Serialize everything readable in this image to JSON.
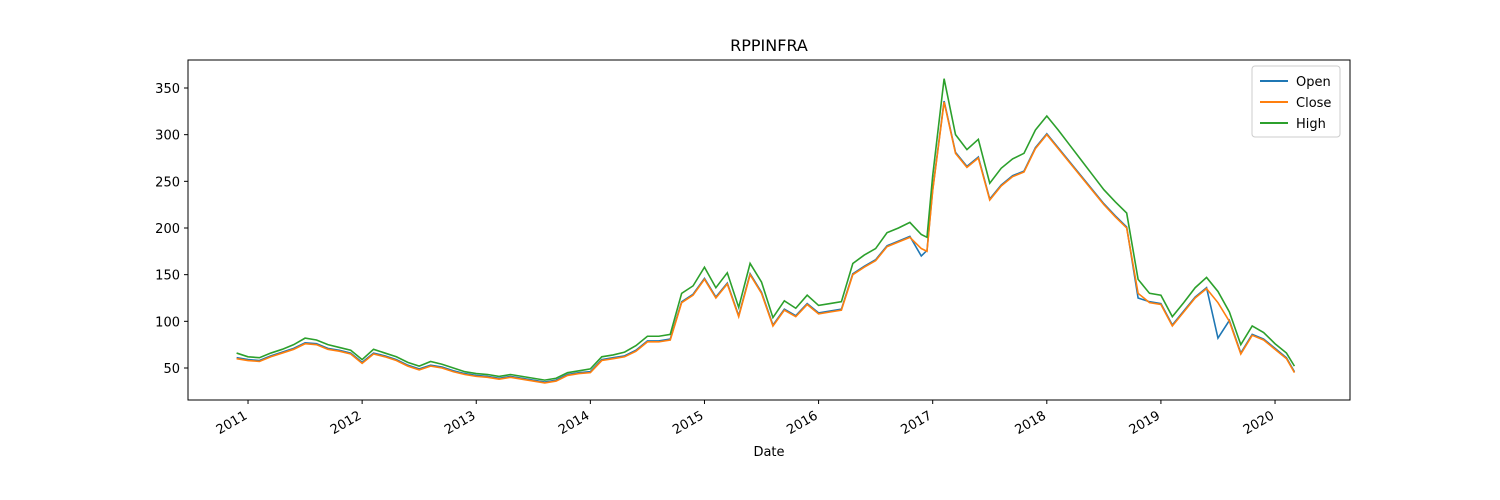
{
  "chart_data": {
    "type": "line",
    "title": "RPPINFRA",
    "x_label": "Date",
    "x": [
      2010.9,
      2011,
      2011.1,
      2011.2,
      2011.3,
      2011.4,
      2011.5,
      2011.6,
      2011.7,
      2011.8,
      2011.9,
      2012,
      2012.1,
      2012.2,
      2012.3,
      2012.4,
      2012.5,
      2012.6,
      2012.7,
      2012.8,
      2012.9,
      2013,
      2013.1,
      2013.2,
      2013.3,
      2013.4,
      2013.5,
      2013.6,
      2013.7,
      2013.8,
      2013.9,
      2014,
      2014.1,
      2014.2,
      2014.3,
      2014.4,
      2014.5,
      2014.6,
      2014.7,
      2014.8,
      2014.9,
      2015,
      2015.1,
      2015.2,
      2015.3,
      2015.4,
      2015.5,
      2015.6,
      2015.7,
      2015.8,
      2015.9,
      2016,
      2016.1,
      2016.2,
      2016.3,
      2016.4,
      2016.5,
      2016.6,
      2016.7,
      2016.8,
      2016.9,
      2016.95,
      2017,
      2017.1,
      2017.2,
      2017.3,
      2017.4,
      2017.5,
      2017.6,
      2017.7,
      2017.8,
      2017.9,
      2018,
      2018.1,
      2018.2,
      2018.3,
      2018.4,
      2018.5,
      2018.6,
      2018.7,
      2018.8,
      2018.9,
      2019,
      2019.1,
      2019.2,
      2019.3,
      2019.4,
      2019.5,
      2019.6,
      2019.7,
      2019.8,
      2019.9,
      2020,
      2020.1,
      2020.17
    ],
    "series": [
      {
        "name": "Open",
        "color": "#1f77b4",
        "values": [
          61,
          59,
          58,
          63,
          67,
          71,
          77,
          76,
          71,
          69,
          66,
          56,
          66,
          63,
          59,
          53,
          49,
          53,
          51,
          47,
          44,
          42,
          41,
          39,
          41,
          39,
          37,
          35,
          37,
          43,
          45,
          46,
          59,
          61,
          63,
          69,
          79,
          79,
          81,
          121,
          129,
          146,
          126,
          141,
          106,
          151,
          131,
          96,
          113,
          106,
          119,
          109,
          111,
          113,
          151,
          159,
          166,
          181,
          186,
          191,
          170,
          176,
          241,
          336,
          281,
          266,
          276,
          231,
          246,
          256,
          261,
          286,
          301,
          286,
          271,
          256,
          241,
          226,
          213,
          201,
          125,
          121,
          119,
          96,
          111,
          126,
          136,
          82,
          101,
          66,
          86,
          81,
          71,
          61,
          46
        ]
      },
      {
        "name": "Close",
        "color": "#ff7f0e",
        "values": [
          60,
          58,
          57,
          62,
          66,
          70,
          76,
          75,
          70,
          68,
          65,
          55,
          65,
          62,
          58,
          52,
          48,
          52,
          50,
          46,
          43,
          41,
          40,
          38,
          40,
          38,
          36,
          34,
          36,
          42,
          44,
          45,
          58,
          60,
          62,
          68,
          78,
          78,
          80,
          120,
          128,
          145,
          125,
          140,
          105,
          150,
          130,
          95,
          112,
          105,
          118,
          108,
          110,
          112,
          150,
          158,
          165,
          180,
          185,
          190,
          178,
          175,
          240,
          335,
          280,
          265,
          275,
          230,
          245,
          255,
          260,
          285,
          300,
          285,
          270,
          255,
          240,
          225,
          212,
          200,
          130,
          120,
          118,
          95,
          110,
          125,
          135,
          120,
          100,
          65,
          85,
          80,
          70,
          60,
          45
        ]
      },
      {
        "name": "High",
        "color": "#2ca02c",
        "values": [
          66,
          62,
          61,
          66,
          70,
          75,
          82,
          80,
          75,
          72,
          69,
          59,
          70,
          66,
          62,
          56,
          52,
          57,
          54,
          50,
          46,
          44,
          43,
          41,
          43,
          41,
          39,
          37,
          39,
          45,
          47,
          49,
          62,
          64,
          67,
          74,
          84,
          84,
          86,
          130,
          138,
          158,
          136,
          152,
          115,
          162,
          142,
          104,
          122,
          114,
          128,
          117,
          119,
          121,
          162,
          171,
          178,
          195,
          200,
          206,
          193,
          190,
          256,
          360,
          300,
          284,
          295,
          248,
          264,
          274,
          280,
          305,
          320,
          305,
          289,
          273,
          257,
          241,
          228,
          216,
          145,
          130,
          128,
          105,
          120,
          136,
          147,
          132,
          110,
          75,
          95,
          88,
          76,
          66,
          52
        ]
      }
    ],
    "xlim": [
      2010.474,
      2020.657
    ],
    "xticks": [
      2011,
      2012,
      2013,
      2014,
      2015,
      2016,
      2017,
      2018,
      2019,
      2020
    ],
    "ylim": [
      15.7,
      380
    ],
    "yticks": [
      50,
      100,
      150,
      200,
      250,
      300,
      350
    ],
    "legend": "upper right",
    "grid": false
  }
}
